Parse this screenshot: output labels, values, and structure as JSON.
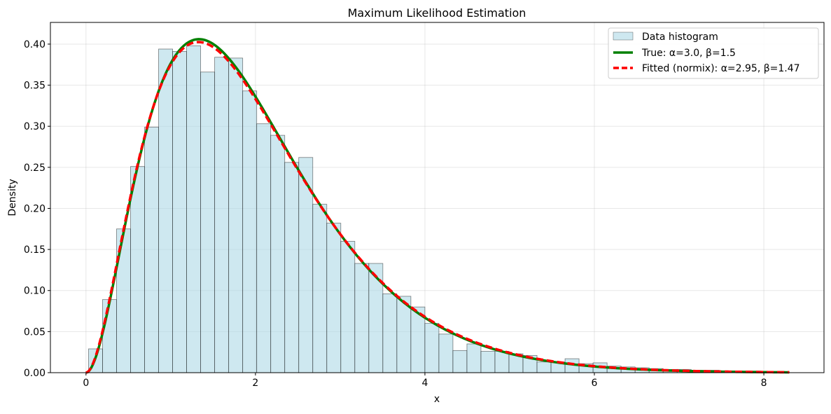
{
  "chart_data": {
    "type": "histogram+line",
    "title": "Maximum Likelihood Estimation",
    "xlabel": "x",
    "ylabel": "Density",
    "xlim": [
      -0.42,
      8.71
    ],
    "ylim": [
      0,
      0.4264
    ],
    "xticks": [
      "0",
      "2",
      "4",
      "6",
      "8"
    ],
    "xtick_values": [
      0,
      2,
      4,
      6,
      8
    ],
    "yticks": [
      "0.00",
      "0.05",
      "0.10",
      "0.15",
      "0.20",
      "0.25",
      "0.30",
      "0.35",
      "0.40"
    ],
    "ytick_values": [
      0,
      0.05,
      0.1,
      0.15,
      0.2,
      0.25,
      0.3,
      0.35,
      0.4
    ],
    "grid": true,
    "legend_position": "top-right",
    "histogram": {
      "name": "Data histogram",
      "bin_start": 0.03,
      "bin_end": 8.3,
      "color": "#add8e6",
      "values": [
        0.029,
        0.089,
        0.175,
        0.251,
        0.299,
        0.394,
        0.391,
        0.398,
        0.366,
        0.384,
        0.383,
        0.343,
        0.303,
        0.289,
        0.256,
        0.262,
        0.205,
        0.182,
        0.16,
        0.133,
        0.133,
        0.096,
        0.093,
        0.08,
        0.06,
        0.047,
        0.027,
        0.035,
        0.026,
        0.026,
        0.023,
        0.021,
        0.013,
        0.013,
        0.017,
        0.011,
        0.012,
        0.008,
        0.007,
        0.006,
        0.005,
        0.004,
        0.004,
        0.003,
        0.003,
        0.002,
        0.002,
        0.002,
        0.001,
        0.001
      ]
    },
    "series": [
      {
        "name": "True: α=3.0, β=1.5",
        "distribution": "gamma",
        "alpha": 3.0,
        "beta": 1.5,
        "color": "#008000",
        "style": "solid",
        "x_range": [
          0,
          8.3
        ]
      },
      {
        "name": "Fitted (normix): α=2.95, β=1.47",
        "distribution": "gamma",
        "alpha": 2.95,
        "beta": 1.47,
        "color": "#ff0000",
        "style": "dashed",
        "x_range": [
          0,
          8.3
        ]
      }
    ]
  }
}
